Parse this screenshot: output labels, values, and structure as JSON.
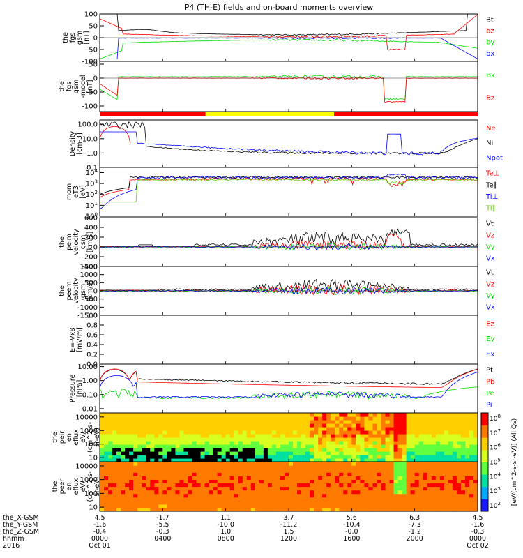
{
  "title": "P4 (TH-E) fields and on-board moments overview",
  "colors": {
    "black": "#000000",
    "red": "#ff0000",
    "green": "#00dd00",
    "blue": "#0000ff",
    "lime": "#66cc00",
    "yellow": "#ffff00"
  },
  "mode_bar": [
    {
      "from": 0.0,
      "to": 0.28,
      "color": "#ff0000"
    },
    {
      "from": 0.28,
      "to": 0.62,
      "color": "#ffff00"
    },
    {
      "from": 0.62,
      "to": 1.0,
      "color": "#ff0000"
    }
  ],
  "chart_data": {
    "type": "line",
    "time_range": [
      "2016-10-01 00:00",
      "2016-10-02 00:00"
    ],
    "x_ticks": {
      "hhmm": [
        "0000",
        "0400",
        "0800",
        "1200",
        "1600",
        "2000",
        "0000"
      ],
      "dates": [
        "Oct 01",
        "",
        "",
        "",
        "",
        "",
        "Oct 02"
      ],
      "year": "2016",
      "X_GSM": [
        "4.5",
        "-1.7",
        "1.1",
        "3.7",
        "5.6",
        "6.3",
        "4.5"
      ],
      "Y_GSM": [
        "-1.6",
        "-5.5",
        "-10.0",
        "-11.2",
        "-10.4",
        "-7.3",
        "-1.6"
      ],
      "Z_GSM": [
        "-0.4",
        "-0.3",
        "1.0",
        "1.5",
        "-0.0",
        "-1.2",
        "-0.3"
      ]
    },
    "row_labels": [
      "the_X-GSM",
      "the_Y-GSM",
      "the_Z-GSM",
      "hhmm",
      "2016"
    ],
    "panels": [
      {
        "ylabel": [
          "the",
          "fgs",
          "gsm",
          "[nT]"
        ],
        "ticks": [
          "100",
          "50",
          "0",
          "-50",
          "-100"
        ],
        "ylim": [
          -100,
          100
        ],
        "scale": "linear",
        "series": [
          {
            "name": "Bt",
            "color": "#000000"
          },
          {
            "name": "bz",
            "color": "#ff0000"
          },
          {
            "name": "by",
            "color": "#00dd00"
          },
          {
            "name": "bx",
            "color": "#0000ff"
          }
        ]
      },
      {
        "ylabel": [
          "the",
          "fgs",
          "gsm",
          "-model",
          "[nT]"
        ],
        "ticks": [
          "50",
          "0",
          "-50",
          "-100"
        ],
        "ylim": [
          -120,
          60
        ],
        "scale": "linear",
        "series": [
          {
            "name": "Bx",
            "color": "#00dd00"
          },
          {
            "name": "Bz",
            "color": "#ff0000"
          }
        ]
      },
      {
        "ylabel": [
          "Density",
          "[cm-3]"
        ],
        "ticks": [
          "100.0",
          "10.0",
          "1.0",
          "0.1"
        ],
        "ylim": [
          0.1,
          200
        ],
        "scale": "log",
        "series": [
          {
            "name": "Ne",
            "color": "#ff0000"
          },
          {
            "name": "Ni",
            "color": "#000000"
          },
          {
            "name": "Npot",
            "color": "#0000ff"
          }
        ]
      },
      {
        "ylabel": [
          "mom",
          "eT3",
          "[eV]"
        ],
        "ticks": [
          "10^4",
          "10^3",
          "10^2",
          "10^1",
          "10^0"
        ],
        "ylim": [
          1,
          30000
        ],
        "scale": "log",
        "series": [
          {
            "name": "Te⊥",
            "color": "#ff0000"
          },
          {
            "name": "Te∥",
            "color": "#000000"
          },
          {
            "name": "Ti⊥",
            "color": "#0000ff"
          },
          {
            "name": "Ti∥",
            "color": "#66cc00"
          }
        ]
      },
      {
        "ylabel": [
          "the",
          "peim",
          "velocity",
          "gsm",
          "[km/s]"
        ],
        "ticks": [
          "600",
          "400",
          "200",
          "0",
          "-200",
          "-400"
        ],
        "ylim": [
          -400,
          600
        ],
        "scale": "linear",
        "series": [
          {
            "name": "Vt",
            "color": "#000000"
          },
          {
            "name": "Vz",
            "color": "#ff0000"
          },
          {
            "name": "Vy",
            "color": "#00dd00"
          },
          {
            "name": "Vx",
            "color": "#0000ff"
          }
        ]
      },
      {
        "ylabel": [
          "the",
          "peem",
          "velocity",
          "gsm",
          "[km/s]"
        ],
        "ticks": [
          "1500",
          "1000",
          "500",
          "0",
          "-500",
          "-1000",
          "-1500"
        ],
        "ylim": [
          -1500,
          1500
        ],
        "scale": "linear",
        "series": [
          {
            "name": "Vt",
            "color": "#000000"
          },
          {
            "name": "Vz",
            "color": "#ff0000"
          },
          {
            "name": "Vy",
            "color": "#00dd00"
          },
          {
            "name": "Vx",
            "color": "#0000ff"
          }
        ]
      },
      {
        "ylabel": [
          "E=-VxB",
          "[mV/m]"
        ],
        "ticks": [
          "1.0",
          "0.8",
          "0.6",
          "0.4",
          "0.2",
          "0.0"
        ],
        "ylim": [
          0,
          1
        ],
        "scale": "linear",
        "series": [
          {
            "name": "Ez",
            "color": "#ff0000"
          },
          {
            "name": "Ey",
            "color": "#00dd00"
          },
          {
            "name": "Ex",
            "color": "#0000ff"
          }
        ]
      },
      {
        "ylabel": [
          "Pressure",
          "[nPa]"
        ],
        "ticks": [
          "10.00",
          "1.00",
          "0.10",
          "0.01"
        ],
        "ylim": [
          0.005,
          15
        ],
        "scale": "log",
        "series": [
          {
            "name": "Pt",
            "color": "#000000"
          },
          {
            "name": "Pb",
            "color": "#ff0000"
          },
          {
            "name": "Pe",
            "color": "#00dd00"
          },
          {
            "name": "Pi",
            "color": "#0000ff"
          }
        ]
      },
      {
        "ylabel": [
          "the",
          "peir",
          "en",
          "eflux",
          "eV/",
          "(cm^2-s-",
          "sr-eV)"
        ],
        "ticks": [
          "10000",
          "1000",
          "100",
          "10"
        ],
        "ylim": [
          5,
          20000
        ],
        "scale": "log",
        "kind": "spectrogram"
      },
      {
        "ylabel": [
          "the",
          "peer",
          "en",
          "eflux",
          "eV/",
          "(cm^2-s-",
          "sr-eV)"
        ],
        "ticks": [
          "10000",
          "1000",
          "100",
          "10"
        ],
        "ylim": [
          5,
          20000
        ],
        "scale": "log",
        "kind": "spectrogram"
      }
    ],
    "colorbar": {
      "ticks": [
        "10^8",
        "10^7",
        "10^6",
        "10^5",
        "10^4",
        "10^3",
        "10^2"
      ],
      "label": "[eV/(cm^2-s-sr-eV)] (All Qs)"
    }
  }
}
